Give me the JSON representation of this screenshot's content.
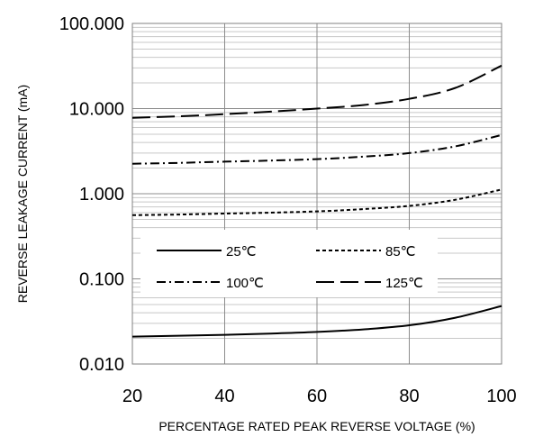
{
  "chart_data": {
    "type": "line",
    "title": "",
    "xlabel": "PERCENTAGE RATED PEAK REVERSE VOLTAGE (%)",
    "ylabel": "REVERSE LEAKAGE CURRENT (mA)",
    "xlim": [
      20,
      100
    ],
    "ylim": [
      0.01,
      100
    ],
    "y_scale": "log",
    "grid": true,
    "x_ticks": [
      "20",
      "40",
      "60",
      "80",
      "100"
    ],
    "y_ticks": [
      "0.010",
      "0.100",
      "1.000",
      "10.000",
      "100.000"
    ],
    "legend_position": "center-left",
    "series": [
      {
        "name": "25℃",
        "dash": "solid",
        "x": [
          20,
          30,
          40,
          50,
          60,
          70,
          80,
          90,
          100
        ],
        "y": [
          0.021,
          0.0215,
          0.022,
          0.0228,
          0.0238,
          0.0255,
          0.0285,
          0.035,
          0.048
        ]
      },
      {
        "name": "85℃",
        "dash": "short-dash",
        "x": [
          20,
          30,
          40,
          50,
          60,
          70,
          80,
          90,
          100
        ],
        "y": [
          0.56,
          0.57,
          0.585,
          0.6,
          0.62,
          0.66,
          0.72,
          0.85,
          1.12
        ]
      },
      {
        "name": "100℃",
        "dash": "dash-dot",
        "x": [
          20,
          30,
          40,
          50,
          60,
          70,
          80,
          90,
          100
        ],
        "y": [
          2.25,
          2.3,
          2.38,
          2.45,
          2.55,
          2.72,
          3.0,
          3.6,
          4.9
        ]
      },
      {
        "name": "125℃",
        "dash": "long-dash",
        "x": [
          20,
          30,
          40,
          50,
          60,
          70,
          80,
          90,
          100
        ],
        "y": [
          7.8,
          8.1,
          8.6,
          9.2,
          10.0,
          11.0,
          13.0,
          17.5,
          32.0
        ]
      }
    ]
  }
}
